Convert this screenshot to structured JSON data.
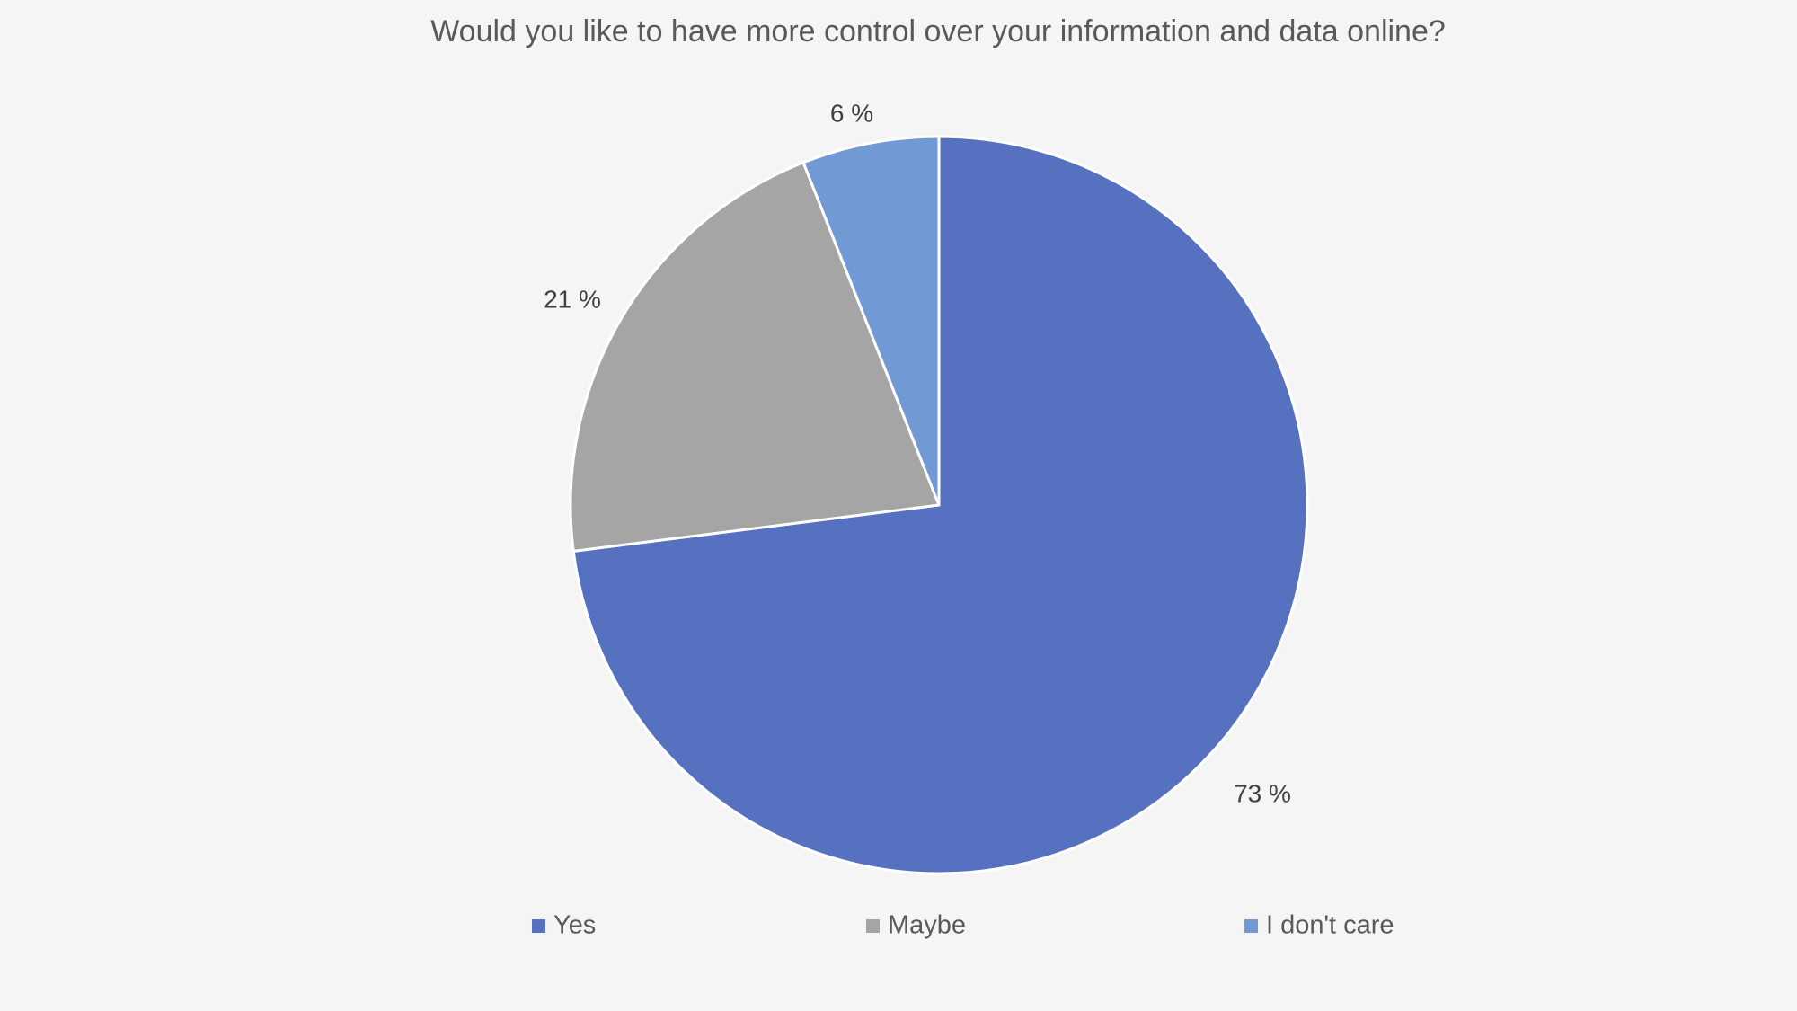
{
  "chart_data": {
    "type": "pie",
    "title": "Would you like to have more control over your information and data online?",
    "categories": [
      "Yes",
      "Maybe",
      "I don't care"
    ],
    "values": [
      73,
      21,
      6
    ],
    "value_labels": [
      "73 %",
      "21 %",
      "6 %"
    ],
    "colors": [
      "#5571c0",
      "#a5a5a5",
      "#7199d3"
    ],
    "start_angle_deg": 0,
    "direction": "clockwise",
    "legend_position": "bottom"
  }
}
